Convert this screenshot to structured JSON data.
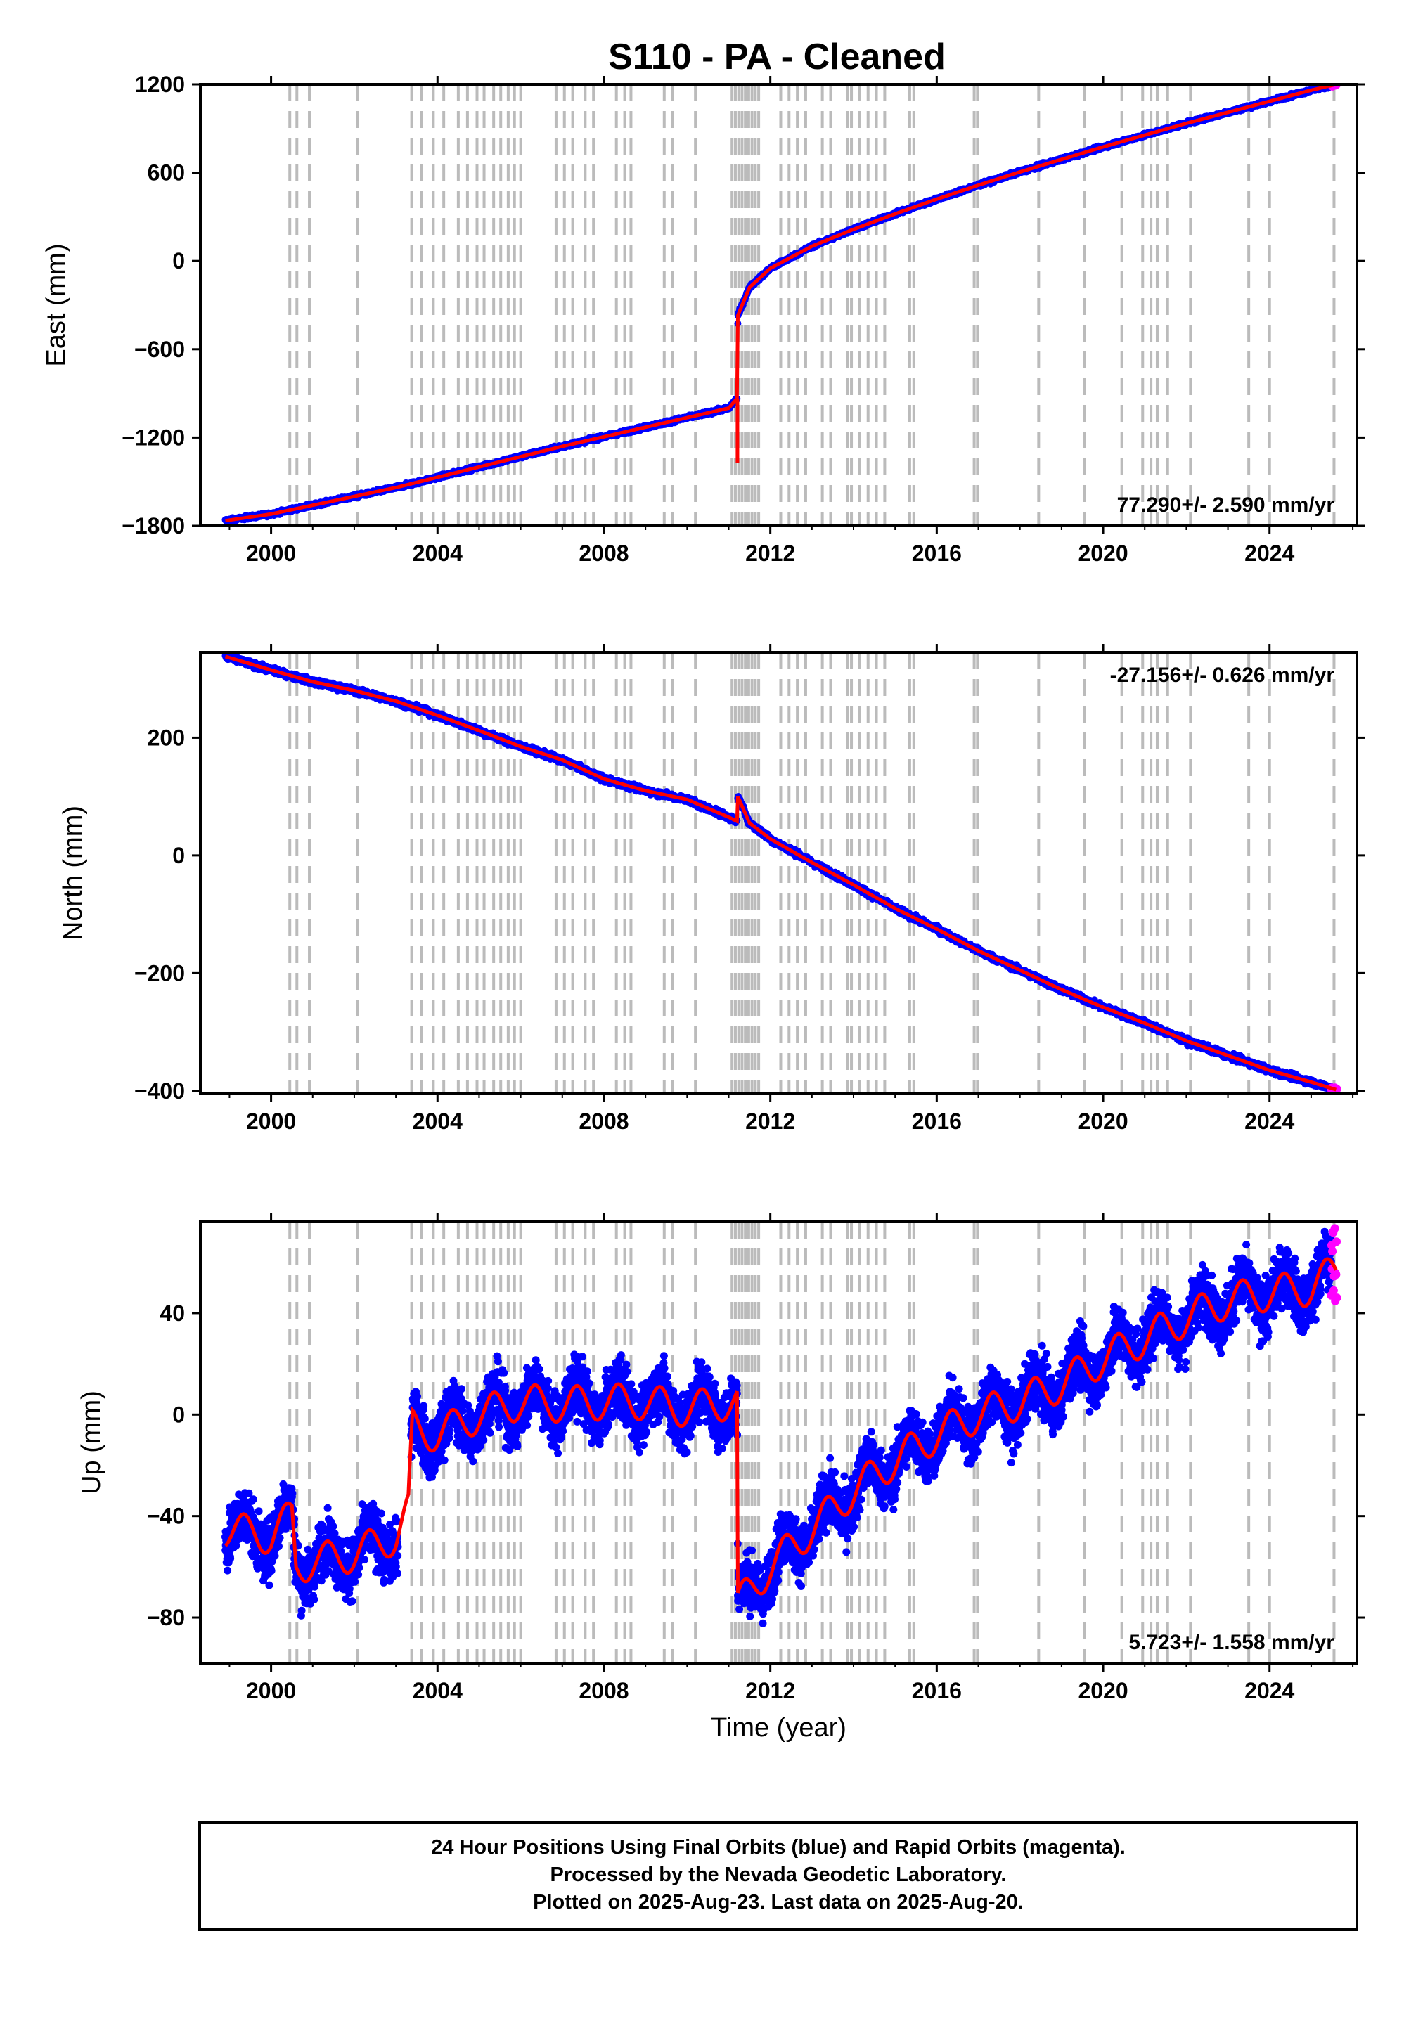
{
  "title": "S110  - PA - Cleaned",
  "colors": {
    "final_orbits": "#0000ff",
    "rapid_orbits": "#ff00ff",
    "model": "#ff0000",
    "equipment_lines": "#bbbbbb",
    "frame": "#000000"
  },
  "chart_data": [
    {
      "type": "scatter",
      "panel": "east",
      "ylabel": "East (mm)",
      "xlabel": "",
      "xlim": [
        1998.3,
        2026.1
      ],
      "ylim": [
        -1800,
        1200
      ],
      "xticks": [
        2000,
        2004,
        2008,
        2012,
        2016,
        2020,
        2024
      ],
      "yticks": [
        -1800,
        -1200,
        -600,
        0,
        600,
        1200
      ],
      "ytick_labels": [
        "−1800",
        "−1200",
        "−600",
        "0",
        "600",
        "1200"
      ],
      "rate_text": "77.290+/- 2.590 mm/yr",
      "rate_position": "bottom-right",
      "series": [
        {
          "points": [
            [
              1998.9,
              -1765
            ],
            [
              2000.0,
              -1720
            ],
            [
              2001.0,
              -1660
            ],
            [
              2002.0,
              -1600
            ],
            [
              2003.0,
              -1540
            ],
            [
              2004.0,
              -1470
            ],
            [
              2005.0,
              -1400
            ],
            [
              2006.0,
              -1330
            ],
            [
              2007.0,
              -1260
            ],
            [
              2008.0,
              -1195
            ],
            [
              2009.0,
              -1130
            ],
            [
              2010.0,
              -1065
            ],
            [
              2011.0,
              -1000
            ],
            [
              2011.2,
              -935
            ],
            [
              2011.22,
              -370
            ],
            [
              2011.5,
              -180
            ],
            [
              2012.0,
              -50
            ],
            [
              2013.0,
              100
            ],
            [
              2014.0,
              215
            ],
            [
              2015.0,
              320
            ],
            [
              2016.0,
              420
            ],
            [
              2017.0,
              515
            ],
            [
              2018.0,
              605
            ],
            [
              2019.0,
              690
            ],
            [
              2020.0,
              775
            ],
            [
              2021.0,
              855
            ],
            [
              2022.0,
              935
            ],
            [
              2023.0,
              1010
            ],
            [
              2024.0,
              1085
            ],
            [
              2025.0,
              1160
            ],
            [
              2025.6,
              1200
            ]
          ]
        }
      ]
    },
    {
      "type": "scatter",
      "panel": "north",
      "ylabel": "North (mm)",
      "xlabel": "",
      "xlim": [
        1998.3,
        2026.1
      ],
      "ylim": [
        -405,
        345
      ],
      "xticks": [
        2000,
        2004,
        2008,
        2012,
        2016,
        2020,
        2024
      ],
      "yticks": [
        -400,
        -200,
        0,
        200
      ],
      "ytick_labels": [
        "−400",
        "−200",
        "0",
        "200"
      ],
      "rate_text": "-27.156+/- 0.626 mm/yr",
      "rate_position": "top-right",
      "series": [
        {
          "points": [
            [
              1998.9,
              338
            ],
            [
              2000.0,
              315
            ],
            [
              2001.0,
              295
            ],
            [
              2002.0,
              280
            ],
            [
              2003.0,
              262
            ],
            [
              2004.0,
              238
            ],
            [
              2005.0,
              212
            ],
            [
              2006.0,
              185
            ],
            [
              2007.0,
              162
            ],
            [
              2008.0,
              130
            ],
            [
              2009.0,
              110
            ],
            [
              2010.0,
              95
            ],
            [
              2011.0,
              65
            ],
            [
              2011.2,
              58
            ],
            [
              2011.22,
              100
            ],
            [
              2011.5,
              55
            ],
            [
              2012.0,
              28
            ],
            [
              2013.0,
              -12
            ],
            [
              2014.0,
              -50
            ],
            [
              2015.0,
              -90
            ],
            [
              2016.0,
              -125
            ],
            [
              2017.0,
              -162
            ],
            [
              2018.0,
              -195
            ],
            [
              2019.0,
              -228
            ],
            [
              2020.0,
              -258
            ],
            [
              2021.0,
              -285
            ],
            [
              2022.0,
              -315
            ],
            [
              2023.0,
              -340
            ],
            [
              2024.0,
              -365
            ],
            [
              2025.0,
              -385
            ],
            [
              2025.6,
              -398
            ]
          ]
        }
      ]
    },
    {
      "type": "scatter",
      "panel": "up",
      "ylabel": "Up (mm)",
      "xlabel": "Time (year)",
      "xlim": [
        1998.3,
        2026.1
      ],
      "ylim": [
        -98,
        76
      ],
      "xticks": [
        2000,
        2004,
        2008,
        2012,
        2016,
        2020,
        2024
      ],
      "yticks": [
        -80,
        -40,
        0,
        40
      ],
      "ytick_labels": [
        "−80",
        "−40",
        "0",
        "40"
      ],
      "rate_text": "5.723+/- 1.558 mm/yr",
      "rate_position": "bottom-right",
      "series": [
        {
          "points": [
            [
              1998.9,
              -45
            ],
            [
              2000.0,
              -48
            ],
            [
              2000.5,
              -40
            ],
            [
              2000.6,
              -60
            ],
            [
              2001.0,
              -58
            ],
            [
              2002.0,
              -55
            ],
            [
              2003.0,
              -48
            ],
            [
              2003.3,
              -38
            ],
            [
              2003.4,
              -5
            ],
            [
              2004.0,
              -8
            ],
            [
              2005.0,
              0
            ],
            [
              2006.0,
              5
            ],
            [
              2007.0,
              4
            ],
            [
              2008.0,
              5
            ],
            [
              2009.0,
              5
            ],
            [
              2010.0,
              2
            ],
            [
              2011.0,
              5
            ],
            [
              2011.2,
              5
            ],
            [
              2011.22,
              -75
            ],
            [
              2012.0,
              -60
            ],
            [
              2013.0,
              -45
            ],
            [
              2014.0,
              -30
            ],
            [
              2015.0,
              -18
            ],
            [
              2016.0,
              -8
            ],
            [
              2017.0,
              0
            ],
            [
              2018.0,
              5
            ],
            [
              2019.0,
              12
            ],
            [
              2020.0,
              22
            ],
            [
              2021.0,
              30
            ],
            [
              2022.0,
              38
            ],
            [
              2023.0,
              45
            ],
            [
              2024.0,
              48
            ],
            [
              2025.0,
              50
            ],
            [
              2025.6,
              57
            ]
          ]
        }
      ]
    }
  ],
  "equipment_changes": [
    2000.45,
    2000.62,
    2000.92,
    2002.08,
    2003.38,
    2003.62,
    2003.9,
    2004.15,
    2004.5,
    2004.72,
    2004.95,
    2005.12,
    2005.35,
    2005.52,
    2005.7,
    2005.85,
    2006.0,
    2006.85,
    2007.05,
    2007.25,
    2007.55,
    2007.75,
    2008.3,
    2008.5,
    2008.65,
    2009.45,
    2009.65,
    2010.2,
    2011.08,
    2011.16,
    2011.24,
    2011.32,
    2011.4,
    2011.48,
    2011.56,
    2011.64,
    2011.72,
    2012.25,
    2012.45,
    2012.65,
    2012.85,
    2013.25,
    2013.45,
    2013.85,
    2013.95,
    2014.15,
    2014.35,
    2014.55,
    2014.75,
    2015.35,
    2015.45,
    2016.9,
    2016.98,
    2018.45,
    2019.55,
    2020.45,
    2020.95,
    2021.15,
    2021.3,
    2021.55,
    2022.1,
    2023.5,
    2024.0,
    2025.55
  ],
  "footer": {
    "line1": "24 Hour Positions Using Final Orbits (blue) and Rapid Orbits (magenta).",
    "line2": "Processed by the Nevada Geodetic Laboratory.",
    "line3": "Plotted on 2025-Aug-23. Last data on 2025-Aug-20."
  }
}
